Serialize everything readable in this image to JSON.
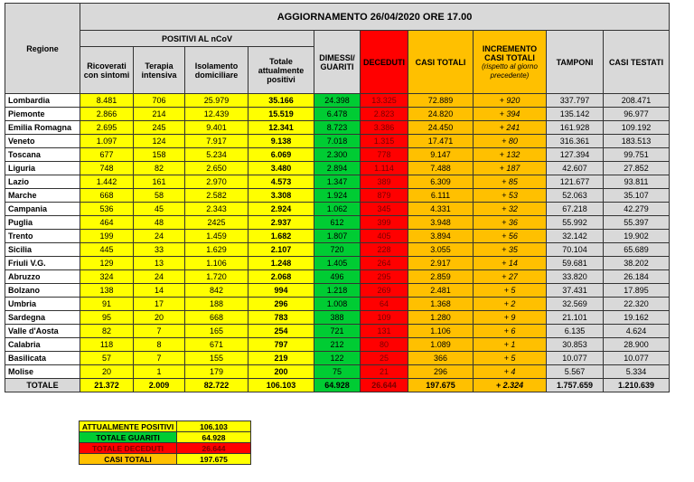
{
  "table": {
    "title": "AGGIORNAMENTO 26/04/2020 ORE 17.00",
    "group": "POSITIVI AL nCoV",
    "columns": [
      "Regione",
      "Ricoverati con sintomi",
      "Terapia intensiva",
      "Isolamento domiciliare",
      "Totale attualmente positivi",
      "DIMESSI/ GUARITI",
      "DECEDUTI",
      "CASI TOTALI",
      "INCREMENTO CASI TOTALI",
      "TAMPONI",
      "CASI TESTATI"
    ],
    "increment_note": "(rispetto al giorno precedente)",
    "rows": [
      [
        "Lombardia",
        "8.481",
        "706",
        "25.979",
        "35.166",
        "24.398",
        "13.325",
        "72.889",
        "+ 920",
        "337.797",
        "208.471"
      ],
      [
        "Piemonte",
        "2.866",
        "214",
        "12.439",
        "15.519",
        "6.478",
        "2.823",
        "24.820",
        "+ 394",
        "135.142",
        "96.977"
      ],
      [
        "Emilia Romagna",
        "2.695",
        "245",
        "9.401",
        "12.341",
        "8.723",
        "3.386",
        "24.450",
        "+ 241",
        "161.928",
        "109.192"
      ],
      [
        "Veneto",
        "1.097",
        "124",
        "7.917",
        "9.138",
        "7.018",
        "1.315",
        "17.471",
        "+ 80",
        "316.361",
        "183.513"
      ],
      [
        "Toscana",
        "677",
        "158",
        "5.234",
        "6.069",
        "2.300",
        "778",
        "9.147",
        "+ 132",
        "127.394",
        "99.751"
      ],
      [
        "Liguria",
        "748",
        "82",
        "2.650",
        "3.480",
        "2.894",
        "1.114",
        "7.488",
        "+ 187",
        "42.607",
        "27.852"
      ],
      [
        "Lazio",
        "1.442",
        "161",
        "2.970",
        "4.573",
        "1.347",
        "389",
        "6.309",
        "+ 85",
        "121.677",
        "93.811"
      ],
      [
        "Marche",
        "668",
        "58",
        "2.582",
        "3.308",
        "1.924",
        "879",
        "6.111",
        "+ 53",
        "52.063",
        "35.107"
      ],
      [
        "Campania",
        "536",
        "45",
        "2.343",
        "2.924",
        "1.062",
        "345",
        "4.331",
        "+ 32",
        "67.218",
        "42.279"
      ],
      [
        "Puglia",
        "464",
        "48",
        "2425",
        "2.937",
        "612",
        "399",
        "3.948",
        "+ 36",
        "55.992",
        "55.397"
      ],
      [
        "Trento",
        "199",
        "24",
        "1.459",
        "1.682",
        "1.807",
        "405",
        "3.894",
        "+ 56",
        "32.142",
        "19.902"
      ],
      [
        "Sicilia",
        "445",
        "33",
        "1.629",
        "2.107",
        "720",
        "228",
        "3.055",
        "+ 35",
        "70.104",
        "65.689"
      ],
      [
        "Friuli V.G.",
        "129",
        "13",
        "1.106",
        "1.248",
        "1.405",
        "264",
        "2.917",
        "+ 14",
        "59.681",
        "38.202"
      ],
      [
        "Abruzzo",
        "324",
        "24",
        "1.720",
        "2.068",
        "496",
        "295",
        "2.859",
        "+ 27",
        "33.820",
        "26.184"
      ],
      [
        "Bolzano",
        "138",
        "14",
        "842",
        "994",
        "1.218",
        "269",
        "2.481",
        "+ 5",
        "37.431",
        "17.895"
      ],
      [
        "Umbria",
        "91",
        "17",
        "188",
        "296",
        "1.008",
        "64",
        "1.368",
        "+ 2",
        "32.569",
        "22.320"
      ],
      [
        "Sardegna",
        "95",
        "20",
        "668",
        "783",
        "388",
        "109",
        "1.280",
        "+ 9",
        "21.101",
        "19.162"
      ],
      [
        "Valle d'Aosta",
        "82",
        "7",
        "165",
        "254",
        "721",
        "131",
        "1.106",
        "+ 6",
        "6.135",
        "4.624"
      ],
      [
        "Calabria",
        "118",
        "8",
        "671",
        "797",
        "212",
        "80",
        "1.089",
        "+ 1",
        "30.853",
        "28.900"
      ],
      [
        "Basilicata",
        "57",
        "7",
        "155",
        "219",
        "122",
        "25",
        "366",
        "+ 5",
        "10.077",
        "10.077"
      ],
      [
        "Molise",
        "20",
        "1",
        "179",
        "200",
        "75",
        "21",
        "296",
        "+ 4",
        "5.567",
        "5.334"
      ]
    ],
    "total": [
      "TOTALE",
      "21.372",
      "2.009",
      "82.722",
      "106.103",
      "64.928",
      "26.644",
      "197.675",
      "+ 2.324",
      "1.757.659",
      "1.210.639"
    ]
  },
  "summary": [
    {
      "label": "ATTUALMENTE POSITIVI",
      "value": "106.103"
    },
    {
      "label": "TOTALE GUARITI",
      "value": "64.928"
    },
    {
      "label": "TOTALE DECEDUTI",
      "value": "26.644"
    },
    {
      "label": "CASI TOTALI",
      "value": "197.675"
    }
  ]
}
